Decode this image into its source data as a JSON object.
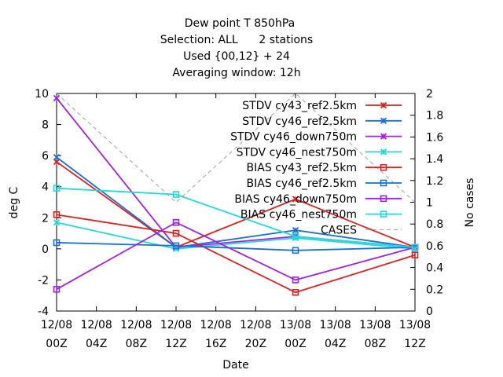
{
  "chart_data": {
    "type": "line",
    "title_lines": [
      "Dew point T 850hPa",
      "Selection: ALL      2 stations",
      "Used {00,12} + 24",
      "Averaging window: 12h"
    ],
    "xlabel": "Date",
    "ylabel": "deg C",
    "y2label": "No cases",
    "x_ticks": [
      {
        "date": "12/08",
        "hour": "00Z"
      },
      {
        "date": "12/08",
        "hour": "04Z"
      },
      {
        "date": "12/08",
        "hour": "08Z"
      },
      {
        "date": "12/08",
        "hour": "12Z"
      },
      {
        "date": "12/08",
        "hour": "16Z"
      },
      {
        "date": "12/08",
        "hour": "20Z"
      },
      {
        "date": "13/08",
        "hour": "00Z"
      },
      {
        "date": "13/08",
        "hour": "04Z"
      },
      {
        "date": "13/08",
        "hour": "08Z"
      },
      {
        "date": "13/08",
        "hour": "12Z"
      }
    ],
    "xlim": [
      0,
      36
    ],
    "ylim": [
      -4,
      10
    ],
    "y_ticks": [
      -4,
      -2,
      0,
      2,
      4,
      6,
      8,
      10
    ],
    "y2lim": [
      0,
      2
    ],
    "y2_ticks": [
      "0",
      "0.2",
      "0.4",
      "0.6",
      "0.8",
      "1",
      "1.2",
      "1.4",
      "1.6",
      "1.8",
      "2"
    ],
    "grid": false,
    "legend_position": "top-right",
    "series": [
      {
        "name": "STDV cy43_ref2.5km",
        "color": "#e0201e",
        "marker": "cross-x",
        "x": [
          0,
          12,
          24,
          36
        ],
        "y": [
          5.6,
          0.1,
          3.2,
          0.1
        ]
      },
      {
        "name": "STDV cy46_ref2.5km",
        "color": "#1a6fd6",
        "marker": "cross-x",
        "x": [
          0,
          12,
          24,
          36
        ],
        "y": [
          5.9,
          0.1,
          1.2,
          0.1
        ]
      },
      {
        "name": "STDV cy46_down750m",
        "color": "#a020f0",
        "marker": "cross-x",
        "x": [
          0,
          12,
          24,
          36
        ],
        "y": [
          9.7,
          0.1,
          0.8,
          0.1
        ]
      },
      {
        "name": "STDV cy46_nest750m",
        "color": "#22d9d9",
        "marker": "cross-x",
        "x": [
          0,
          12,
          24,
          36
        ],
        "y": [
          1.7,
          0.0,
          0.7,
          0.0
        ]
      },
      {
        "name": "BIAS cy43_ref2.5km",
        "color": "#e0201e",
        "marker": "square",
        "x": [
          0,
          12,
          24,
          36
        ],
        "y": [
          2.2,
          1.0,
          -2.8,
          -0.4
        ]
      },
      {
        "name": "BIAS cy46_ref2.5km",
        "color": "#1a6fd6",
        "marker": "square",
        "x": [
          0,
          12,
          24,
          36
        ],
        "y": [
          0.4,
          0.2,
          -0.1,
          0.1
        ]
      },
      {
        "name": "BIAS cy46_down750m",
        "color": "#a020f0",
        "marker": "square",
        "x": [
          0,
          12,
          24,
          36
        ],
        "y": [
          -2.6,
          1.7,
          -2.0,
          0.1
        ]
      },
      {
        "name": "BIAS cy46_nest750m",
        "color": "#22d9d9",
        "marker": "square",
        "x": [
          0,
          12,
          24,
          36
        ],
        "y": [
          3.9,
          3.5,
          0.8,
          0.1
        ]
      },
      {
        "name": "CASES",
        "color": "#a0a0a0",
        "dashed": true,
        "axis": "y2",
        "x": [
          0,
          12,
          24,
          36
        ],
        "y": [
          2,
          1,
          2,
          1
        ]
      }
    ]
  }
}
